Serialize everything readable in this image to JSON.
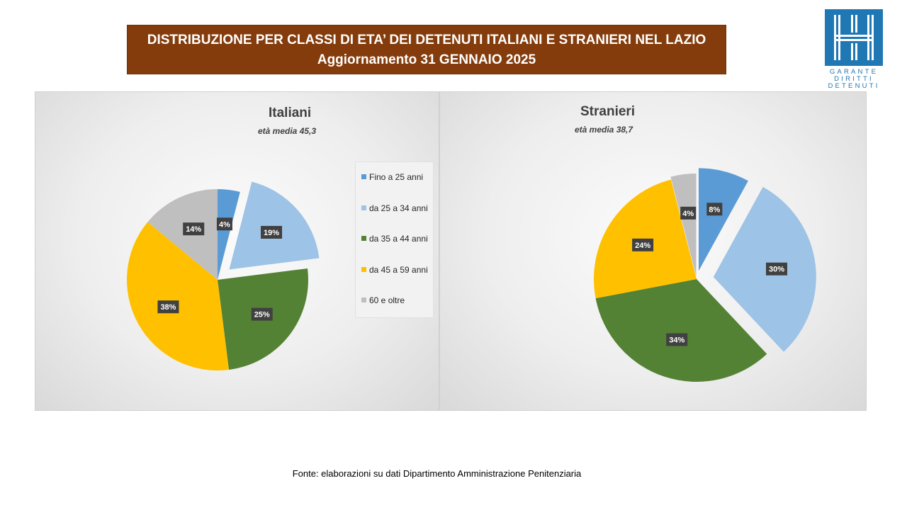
{
  "header": {
    "title_line1": "DISTRIBUZIONE PER CLASSI DI ETA’ DEI DETENUTI ITALIANI E STRANIERI NEL LAZIO",
    "title_line2": "Aggiornamento 31 GENNAIO 2025"
  },
  "logo": {
    "line1": "GARANTE",
    "line2": "DIRITTI",
    "line3": "DETENUTI"
  },
  "legend": {
    "items": [
      "Fino a 25 anni",
      "da 25 a 34 anni",
      "da 35 a 44 anni",
      "da 45 a 59 anni",
      "60 e oltre"
    ]
  },
  "colors": {
    "title_bg": "#843c0c",
    "fino_25": "#5b9bd5",
    "da_25_34": "#9dc3e6",
    "da_35_44": "#548235",
    "da_45_59": "#ffc000",
    "oltre_60": "#bfbfbf",
    "logo": "#1f77b4"
  },
  "chart_data": [
    {
      "type": "pie",
      "title": "Italiani",
      "subtitle": "età media 45,3",
      "categories": [
        "Fino a 25 anni",
        "da 25 a 34 anni",
        "da 35 a 44 anni",
        "da 45 a 59 anni",
        "60 e oltre"
      ],
      "values": [
        4,
        19,
        25,
        38,
        14
      ],
      "labels": [
        "4%",
        "19%",
        "25%",
        "38%",
        "14%"
      ],
      "legend": "right"
    },
    {
      "type": "pie",
      "title": "Stranieri",
      "subtitle": "età media 38,7",
      "categories": [
        "Fino a 25 anni",
        "da 25 a 34 anni",
        "da 35 a 44 anni",
        "da 45 a 59 anni",
        "60 e oltre"
      ],
      "values": [
        8,
        30,
        34,
        24,
        4
      ],
      "labels": [
        "8%",
        "30%",
        "34%",
        "24%",
        "4%"
      ],
      "legend": "none"
    }
  ],
  "footer": {
    "source": "Fonte: elaborazioni su dati Dipartimento Amministrazione Penitenziaria"
  }
}
